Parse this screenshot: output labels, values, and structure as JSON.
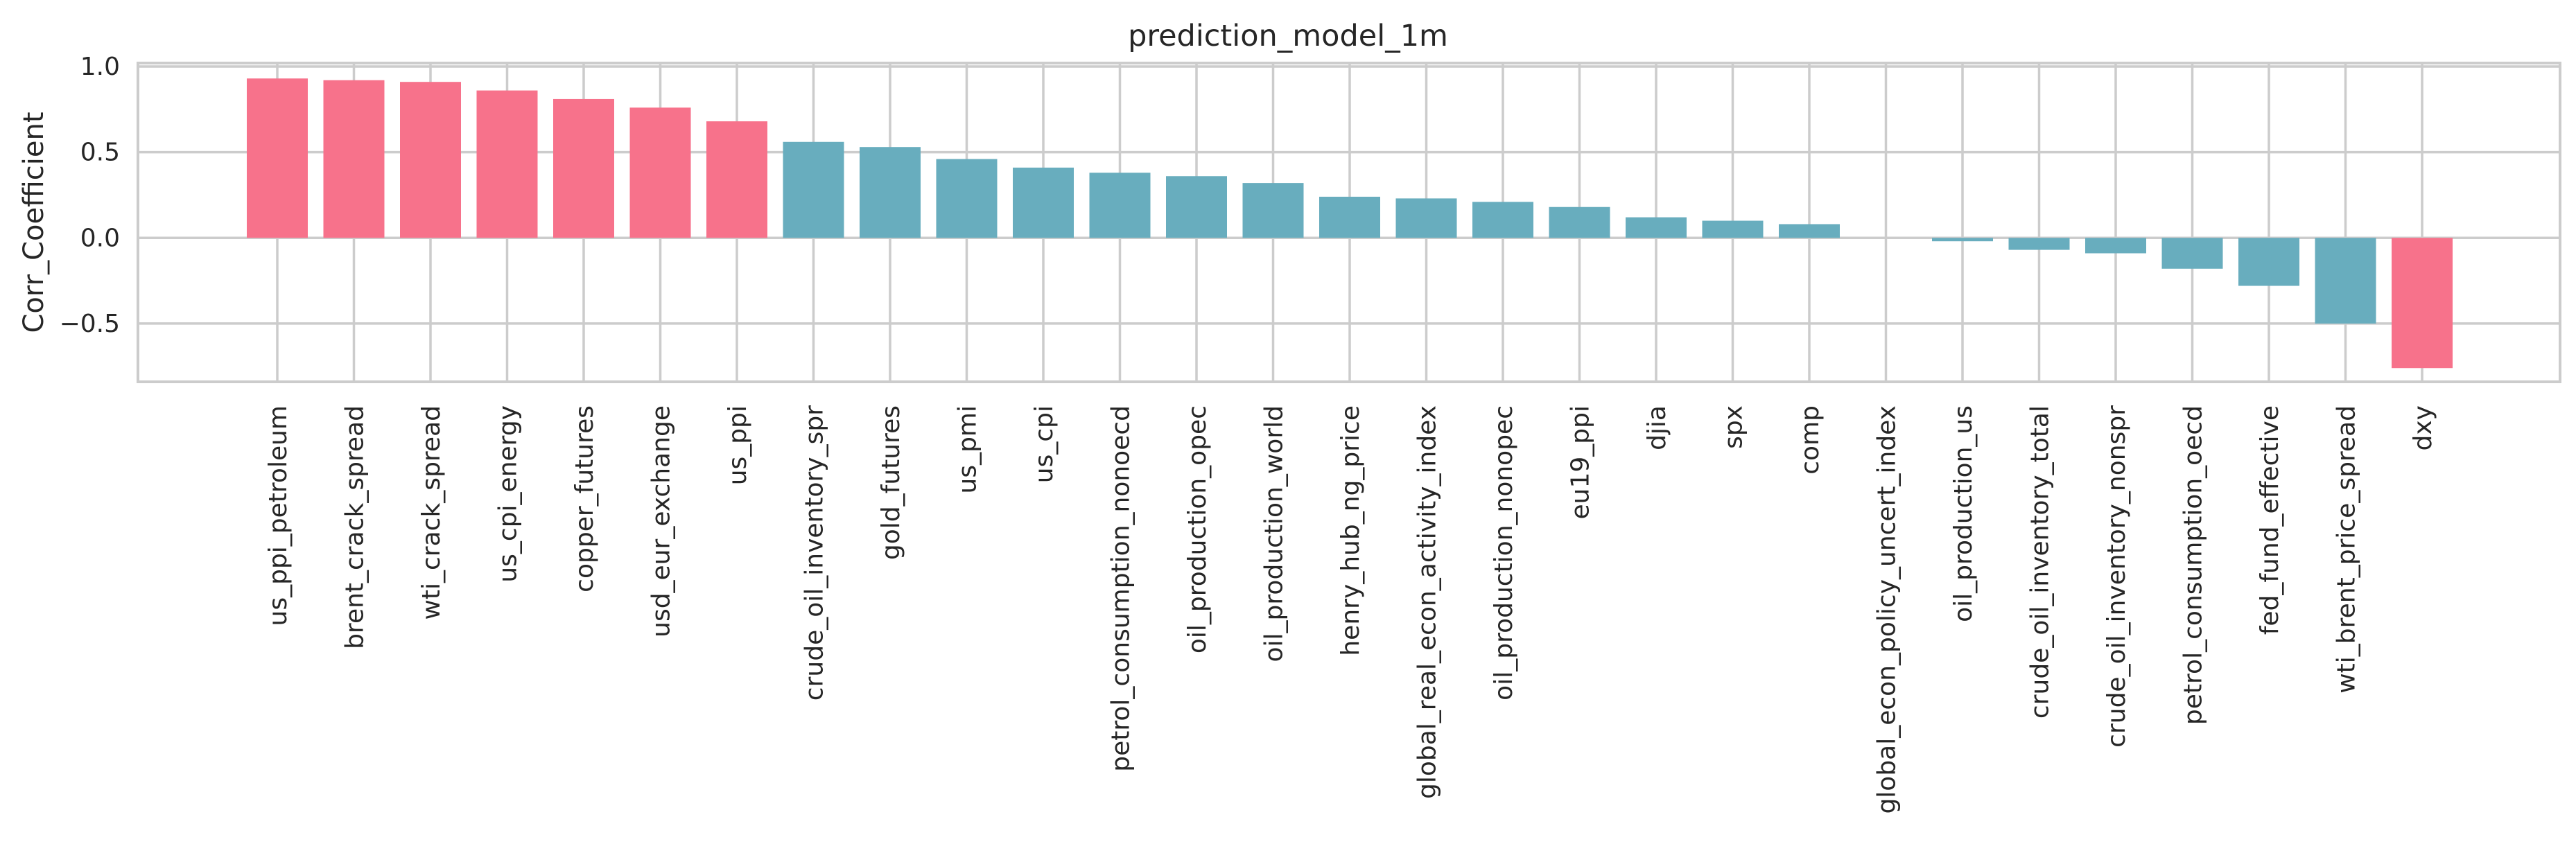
{
  "chart_data": {
    "type": "bar",
    "title": "prediction_model_1m",
    "xlabel": "",
    "ylabel": "Corr_Coefficient",
    "ylim": [
      -0.84,
      1.02
    ],
    "yticks": [
      -0.5,
      0.0,
      0.5,
      1.0
    ],
    "ytick_labels": [
      "−0.5",
      "0.0",
      "0.5",
      "1.0"
    ],
    "grid": true,
    "legend": "none",
    "categories": [
      "us_ppi_petroleum",
      "brent_crack_spread",
      "wti_crack_spread",
      "us_cpi_energy",
      "copper_futures",
      "usd_eur_exchange",
      "us_ppi",
      "crude_oil_inventory_spr",
      "gold_futures",
      "us_pmi",
      "us_cpi",
      "petrol_consumption_nonoecd",
      "oil_production_opec",
      "oil_production_world",
      "henry_hub_ng_price",
      "global_real_econ_activity_index",
      "oil_production_nonopec",
      "eu19_ppi",
      "djia",
      "spx",
      "comp",
      "global_econ_policy_uncert_index",
      "oil_production_us",
      "crude_oil_inventory_total",
      "crude_oil_inventory_nonspr",
      "petrol_consumption_oecd",
      "fed_fund_effective",
      "wti_brent_price_spread",
      "dxy"
    ],
    "values": [
      0.93,
      0.92,
      0.91,
      0.86,
      0.81,
      0.76,
      0.68,
      0.56,
      0.53,
      0.46,
      0.41,
      0.38,
      0.36,
      0.32,
      0.24,
      0.23,
      0.21,
      0.18,
      0.12,
      0.1,
      0.08,
      0.0,
      -0.02,
      -0.07,
      -0.09,
      -0.18,
      -0.28,
      -0.5,
      -0.76
    ],
    "highlight_threshold": 0.6,
    "colors": {
      "highlight": "#f7728b",
      "normal": "#68adbe",
      "grid": "#cccccc",
      "text": "#262626"
    }
  }
}
